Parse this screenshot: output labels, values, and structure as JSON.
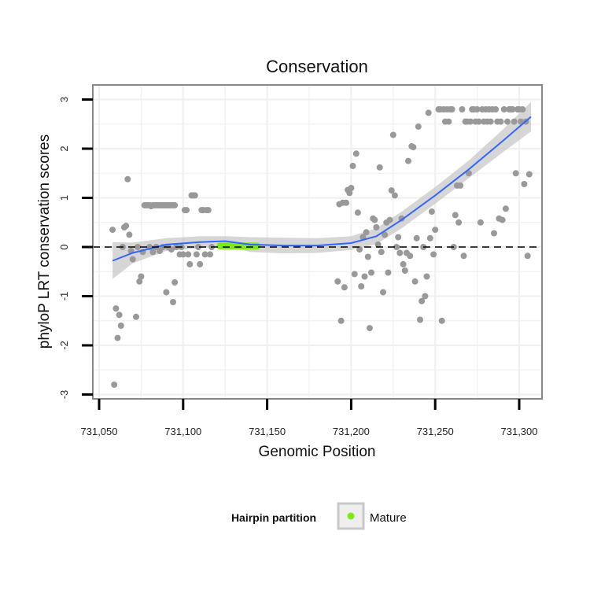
{
  "chart_data": {
    "type": "scatter",
    "title": "Conservation",
    "xlabel": "Genomic Position",
    "ylabel": "phyloP LRT conservation scores",
    "xlim": [
      731055,
      731310
    ],
    "ylim": [
      -3.1,
      3.3
    ],
    "x_ticks": [
      731050,
      731100,
      731150,
      731200,
      731250,
      731300
    ],
    "x_tick_labels": [
      "731,050",
      "731,100",
      "731,150",
      "731,200",
      "731,250",
      "731,300"
    ],
    "y_ticks": [
      -3,
      -2,
      -1,
      0,
      1,
      2,
      3
    ],
    "y_tick_labels": [
      "-3",
      "-2",
      "-1",
      "0",
      "1",
      "2",
      "3"
    ],
    "grid": true,
    "reference_line_y": 0,
    "legend": {
      "title": "Hairpin partition",
      "position": "bottom",
      "entries": [
        {
          "label": "Mature",
          "color": "#7FE817"
        }
      ]
    },
    "colors": {
      "points": "#999999",
      "mature": "#7FE817",
      "smooth_line": "#3366FF",
      "ribbon": "#C8C8C8",
      "grid": "#F0F0F0",
      "panel_border": "#888888"
    },
    "points": [
      [
        731058,
        0.35
      ],
      [
        731059,
        -2.8
      ],
      [
        731060,
        -1.25
      ],
      [
        731061,
        -1.85
      ],
      [
        731062,
        -1.38
      ],
      [
        731063,
        -1.6
      ],
      [
        731064,
        0
      ],
      [
        731065,
        0.4
      ],
      [
        731066,
        0.43
      ],
      [
        731067,
        1.38
      ],
      [
        731068,
        0.25
      ],
      [
        731069,
        -0.08
      ],
      [
        731070,
        -0.25
      ],
      [
        731072,
        -1.42
      ],
      [
        731073,
        0
      ],
      [
        731074,
        -0.7
      ],
      [
        731075,
        -0.6
      ],
      [
        731076,
        -0.1
      ],
      [
        731077,
        0.85
      ],
      [
        731078,
        0.85
      ],
      [
        731079,
        0.85
      ],
      [
        731080,
        0.85
      ],
      [
        731081,
        0.83
      ],
      [
        731082,
        0.85
      ],
      [
        731083,
        0.85
      ],
      [
        731084,
        0.85
      ],
      [
        731085,
        0.85
      ],
      [
        731086,
        0.85
      ],
      [
        731087,
        0.85
      ],
      [
        731088,
        0.85
      ],
      [
        731089,
        0.85
      ],
      [
        731090,
        0.85
      ],
      [
        731091,
        0.85
      ],
      [
        731092,
        0.85
      ],
      [
        731093,
        0.85
      ],
      [
        731094,
        0.85
      ],
      [
        731095,
        0.85
      ],
      [
        731080,
        0
      ],
      [
        731082,
        -0.1
      ],
      [
        731084,
        0
      ],
      [
        731086,
        -0.08
      ],
      [
        731088,
        0
      ],
      [
        731090,
        -0.92
      ],
      [
        731091,
        0
      ],
      [
        731093,
        -0.05
      ],
      [
        731094,
        -1.12
      ],
      [
        731095,
        -0.72
      ],
      [
        731096,
        0
      ],
      [
        731098,
        -0.15
      ],
      [
        731099,
        0
      ],
      [
        731100,
        -0.15
      ],
      [
        731101,
        0.75
      ],
      [
        731102,
        0.75
      ],
      [
        731103,
        -0.15
      ],
      [
        731104,
        -0.35
      ],
      [
        731105,
        1.05
      ],
      [
        731106,
        1.05
      ],
      [
        731107,
        1.05
      ],
      [
        731108,
        -0.15
      ],
      [
        731109,
        0
      ],
      [
        731110,
        -0.35
      ],
      [
        731111,
        0.75
      ],
      [
        731112,
        0.75
      ],
      [
        731113,
        -0.15
      ],
      [
        731114,
        0.75
      ],
      [
        731115,
        0.75
      ],
      [
        731116,
        -0.15
      ],
      [
        731117,
        0
      ],
      [
        731192,
        -0.7
      ],
      [
        731193,
        0.87
      ],
      [
        731194,
        -1.5
      ],
      [
        731195,
        0.9
      ],
      [
        731196,
        -0.82
      ],
      [
        731197,
        0.9
      ],
      [
        731198,
        1.16
      ],
      [
        731199,
        1.1
      ],
      [
        731200,
        1.2
      ],
      [
        731201,
        1.65
      ],
      [
        731202,
        -0.55
      ],
      [
        731203,
        1.9
      ],
      [
        731204,
        0.7
      ],
      [
        731205,
        -0.05
      ],
      [
        731206,
        -0.8
      ],
      [
        731207,
        0.2
      ],
      [
        731208,
        -0.6
      ],
      [
        731209,
        0.3
      ],
      [
        731210,
        -0.2
      ],
      [
        731211,
        -1.65
      ],
      [
        731212,
        -0.52
      ],
      [
        731213,
        0.58
      ],
      [
        731214,
        0.55
      ],
      [
        731215,
        0.4
      ],
      [
        731216,
        0.05
      ],
      [
        731217,
        1.62
      ],
      [
        731218,
        -0.1
      ],
      [
        731219,
        -0.92
      ],
      [
        731220,
        0.25
      ],
      [
        731221,
        0.5
      ],
      [
        731222,
        -0.52
      ],
      [
        731223,
        0.55
      ],
      [
        731224,
        1.15
      ],
      [
        731225,
        2.28
      ],
      [
        731226,
        1.05
      ],
      [
        731227,
        0
      ],
      [
        731228,
        0.2
      ],
      [
        731229,
        -0.12
      ],
      [
        731230,
        0.58
      ],
      [
        731231,
        -0.35
      ],
      [
        731232,
        -0.48
      ],
      [
        731233,
        -0.12
      ],
      [
        731234,
        1.75
      ],
      [
        731235,
        -0.18
      ],
      [
        731236,
        2.05
      ],
      [
        731237,
        2.03
      ],
      [
        731238,
        -0.7
      ],
      [
        731239,
        0.18
      ],
      [
        731240,
        2.45
      ],
      [
        731241,
        -1.48
      ],
      [
        731242,
        -1.1
      ],
      [
        731243,
        0
      ],
      [
        731244,
        -1.0
      ],
      [
        731245,
        -0.6
      ],
      [
        731246,
        2.73
      ],
      [
        731247,
        0.18
      ],
      [
        731248,
        0.72
      ],
      [
        731249,
        -0.15
      ],
      [
        731250,
        0.35
      ],
      [
        731252,
        2.8
      ],
      [
        731253,
        2.8
      ],
      [
        731254,
        -1.5
      ],
      [
        731255,
        2.8
      ],
      [
        731256,
        2.55
      ],
      [
        731257,
        2.8
      ],
      [
        731258,
        2.55
      ],
      [
        731259,
        2.8
      ],
      [
        731260,
        2.8
      ],
      [
        731261,
        0
      ],
      [
        731262,
        0.65
      ],
      [
        731263,
        1.25
      ],
      [
        731264,
        0.5
      ],
      [
        731265,
        1.25
      ],
      [
        731266,
        2.8
      ],
      [
        731267,
        -0.18
      ],
      [
        731268,
        2.55
      ],
      [
        731269,
        2.55
      ],
      [
        731270,
        1.5
      ],
      [
        731271,
        2.55
      ],
      [
        731272,
        2.8
      ],
      [
        731273,
        2.8
      ],
      [
        731274,
        2.55
      ],
      [
        731275,
        2.8
      ],
      [
        731276,
        2.55
      ],
      [
        731277,
        0.5
      ],
      [
        731278,
        2.8
      ],
      [
        731279,
        2.55
      ],
      [
        731280,
        2.8
      ],
      [
        731281,
        2.55
      ],
      [
        731282,
        2.8
      ],
      [
        731283,
        2.55
      ],
      [
        731284,
        2.8
      ],
      [
        731285,
        0.28
      ],
      [
        731286,
        2.8
      ],
      [
        731287,
        2.55
      ],
      [
        731288,
        0.58
      ],
      [
        731289,
        2.55
      ],
      [
        731290,
        0.55
      ],
      [
        731291,
        2.8
      ],
      [
        731292,
        0.78
      ],
      [
        731293,
        2.55
      ],
      [
        731294,
        2.8
      ],
      [
        731295,
        2.8
      ],
      [
        731296,
        2.8
      ],
      [
        731297,
        2.55
      ],
      [
        731298,
        1.5
      ],
      [
        731299,
        2.8
      ],
      [
        731300,
        2.8
      ],
      [
        731301,
        2.55
      ],
      [
        731302,
        2.8
      ],
      [
        731303,
        1.28
      ],
      [
        731304,
        2.55
      ],
      [
        731305,
        -0.18
      ],
      [
        731306,
        1.48
      ]
    ],
    "mature_points": [
      [
        731122,
        0.02
      ],
      [
        731123,
        0.02
      ],
      [
        731124,
        0.02
      ],
      [
        731125,
        0.02
      ],
      [
        731126,
        0.02
      ],
      [
        731127,
        0.02
      ],
      [
        731128,
        0.02
      ],
      [
        731129,
        0.02
      ],
      [
        731130,
        0.02
      ],
      [
        731131,
        0.02
      ],
      [
        731132,
        0.02
      ],
      [
        731133,
        0.02
      ],
      [
        731134,
        0.02
      ],
      [
        731135,
        0.02
      ],
      [
        731136,
        0.02
      ],
      [
        731137,
        0.02
      ],
      [
        731138,
        0.02
      ],
      [
        731139,
        0.02
      ],
      [
        731140,
        0.02
      ],
      [
        731141,
        0.02
      ],
      [
        731142,
        0.02
      ],
      [
        731143,
        0.02
      ],
      [
        731144,
        0.02
      ]
    ],
    "smooth": {
      "x": [
        731058,
        731070,
        731090,
        731110,
        731125,
        731140,
        731160,
        731180,
        731200,
        731215,
        731230,
        731250,
        731270,
        731290,
        731307
      ],
      "y": [
        -0.28,
        -0.12,
        0.05,
        0.1,
        0.12,
        0.05,
        0.03,
        0.03,
        0.08,
        0.22,
        0.55,
        1.05,
        1.58,
        2.15,
        2.65
      ],
      "lo": [
        -0.65,
        -0.33,
        -0.08,
        -0.02,
        0.02,
        -0.1,
        -0.13,
        -0.12,
        -0.06,
        0.06,
        0.38,
        0.88,
        1.4,
        1.92,
        2.35
      ],
      "hi": [
        0.1,
        0.09,
        0.18,
        0.22,
        0.22,
        0.2,
        0.19,
        0.18,
        0.22,
        0.38,
        0.72,
        1.22,
        1.76,
        2.38,
        2.95
      ]
    }
  }
}
